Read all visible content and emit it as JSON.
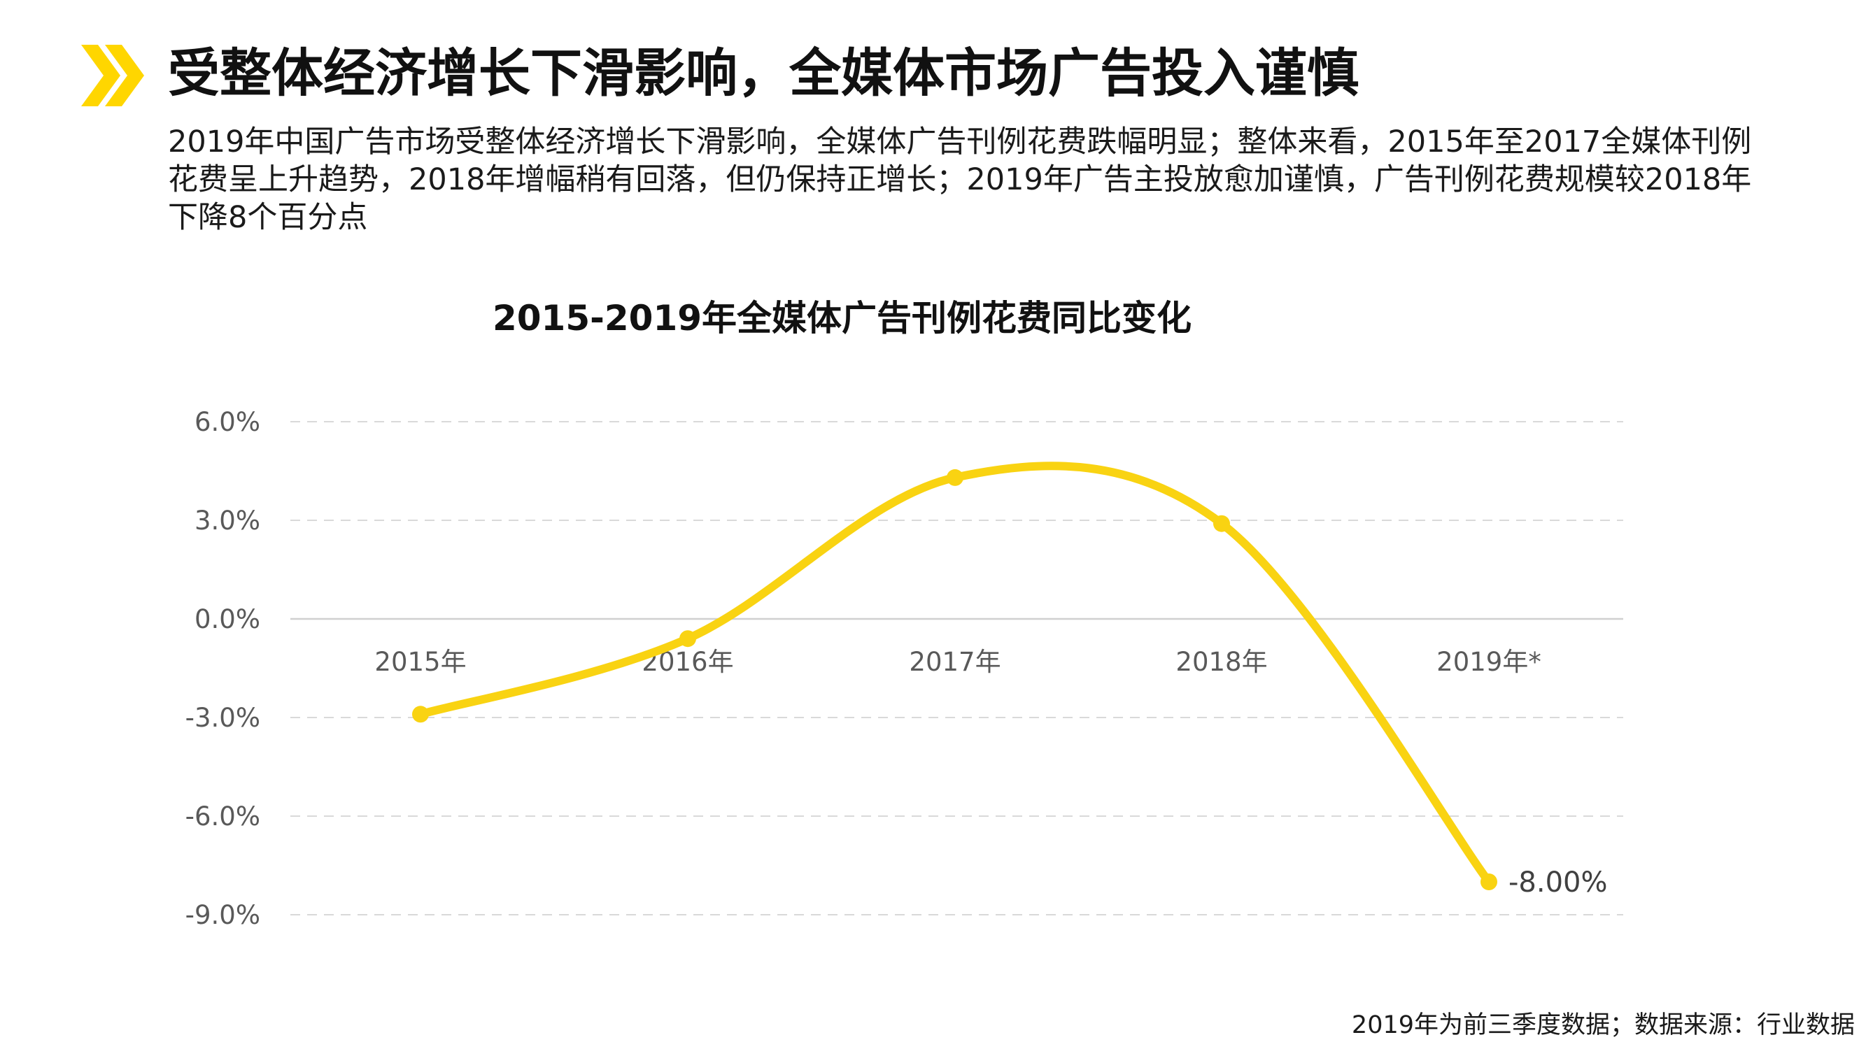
{
  "header": {
    "title": "受整体经济增长下滑影响，全媒体市场广告投入谨慎",
    "icon": "double-chevron-icon",
    "accent_color": "#FFD600"
  },
  "intro": "2019年中国广告市场受整体经济增长下滑影响，全媒体广告刊例花费跌幅明显；整体来看，2015年至2017全媒体刊例花费呈上升趋势，2018年增幅稍有回落，但仍保持正增长；2019年广告主投放愈加谨慎，广告刊例花费规模较2018年下降8个百分点",
  "footer": {
    "source_note": "2019年为前三季度数据；数据来源：行业数据"
  },
  "chart_data": {
    "type": "line",
    "title": "2015-2019年全媒体广告刊例花费同比变化",
    "categories": [
      "2015年",
      "2016年",
      "2017年",
      "2018年",
      "2019年*"
    ],
    "values": [
      -2.9,
      -0.6,
      4.3,
      2.9,
      -8.0
    ],
    "y_ticks": [
      "6.0%",
      "3.0%",
      "0.0%",
      "-3.0%",
      "-6.0%",
      "-9.0%"
    ],
    "y_tick_values": [
      6,
      3,
      0,
      -3,
      -6,
      -9
    ],
    "ylim": [
      -9,
      6
    ],
    "smooth": true,
    "grid": true,
    "gridline_style": "dashed",
    "data_labels": [
      {
        "index": 4,
        "text": "-8.00%"
      }
    ],
    "line_color": "#F9D312",
    "xlabel": "",
    "ylabel": ""
  }
}
